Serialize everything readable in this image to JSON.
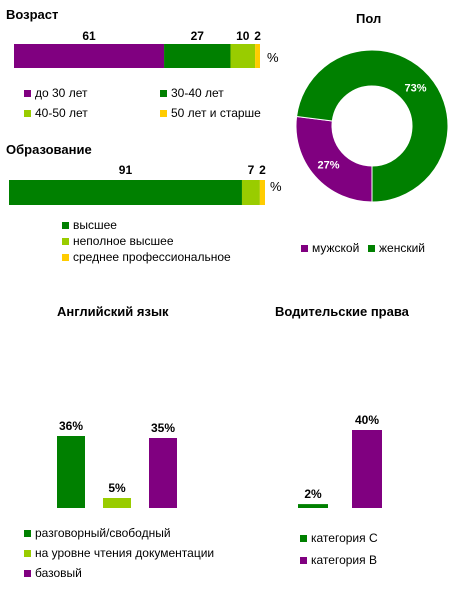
{
  "colors": {
    "purple": "#800080",
    "green": "#008000",
    "lime": "#99cc00",
    "yellow": "#ffcc00"
  },
  "chart_data": [
    {
      "type": "bar",
      "orientation": "horizontal-stacked",
      "title": "Возраст",
      "unit": "%",
      "segments": [
        {
          "name": "до 30 лет",
          "value": 61,
          "color": "#800080"
        },
        {
          "name": "30-40  лет",
          "value": 27,
          "color": "#008000"
        },
        {
          "name": "40-50  лет",
          "value": 10,
          "color": "#99cc00"
        },
        {
          "name": "50 лет  и  старше",
          "value": 2,
          "color": "#ffcc00"
        }
      ]
    },
    {
      "type": "bar",
      "orientation": "horizontal-stacked",
      "title": "Образование",
      "unit": "%",
      "segments": [
        {
          "name": "высшее",
          "value": 91,
          "color": "#008000"
        },
        {
          "name": "неполное высшее",
          "value": 7,
          "color": "#99cc00"
        },
        {
          "name": "среднее профессиональное",
          "value": 2,
          "color": "#ffcc00"
        }
      ]
    },
    {
      "type": "pie",
      "variant": "donut",
      "title": "Пол",
      "slices": [
        {
          "name": "мужской",
          "value": 27,
          "label": "27%",
          "color": "#800080"
        },
        {
          "name": "женский",
          "value": 73,
          "label": "73%",
          "color": "#008000"
        }
      ]
    },
    {
      "type": "bar",
      "title": "Английский язык",
      "ylim": [
        0,
        40
      ],
      "bars": [
        {
          "name": "разговорный/свободный",
          "value": 36,
          "label": "36%",
          "color": "#008000"
        },
        {
          "name": "на уровне чтения документации",
          "value": 5,
          "label": "5%",
          "color": "#99cc00"
        },
        {
          "name": "базовый",
          "value": 35,
          "label": "35%",
          "color": "#800080"
        }
      ]
    },
    {
      "type": "bar",
      "title": "Водительские права",
      "ylim": [
        0,
        40
      ],
      "bars": [
        {
          "name": "категория  С",
          "value": 2,
          "label": "2%",
          "color": "#008000"
        },
        {
          "name": "категория  В",
          "value": 40,
          "label": "40%",
          "color": "#800080"
        }
      ]
    }
  ]
}
